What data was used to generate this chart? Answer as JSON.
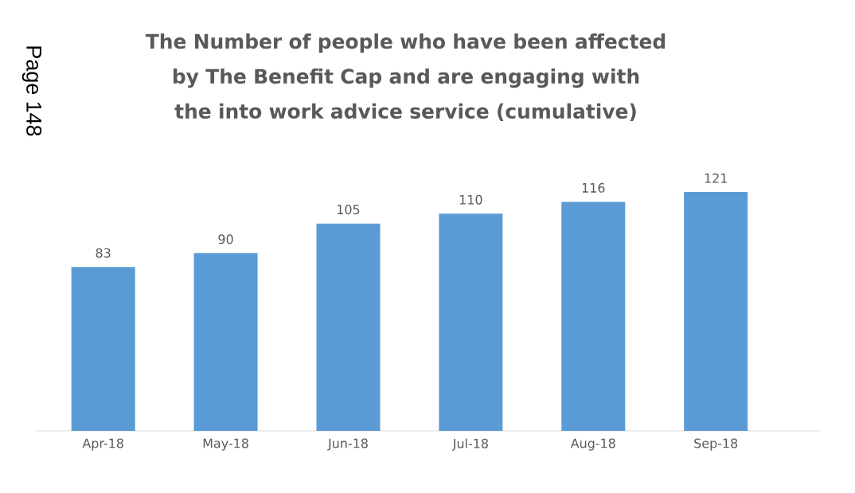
{
  "chart_data": {
    "type": "bar",
    "title": "The Number of people who have been affected by The Benefit Cap and are engaging with the into work advice service (cumulative)",
    "categories": [
      "Apr-18",
      "May-18",
      "Jun-18",
      "Jul-18",
      "Aug-18",
      "Sep-18"
    ],
    "values": [
      83,
      90,
      105,
      110,
      116,
      121
    ],
    "color": "#5b9bd5",
    "data_labels": true,
    "annotations": [
      "Page 148"
    ]
  }
}
